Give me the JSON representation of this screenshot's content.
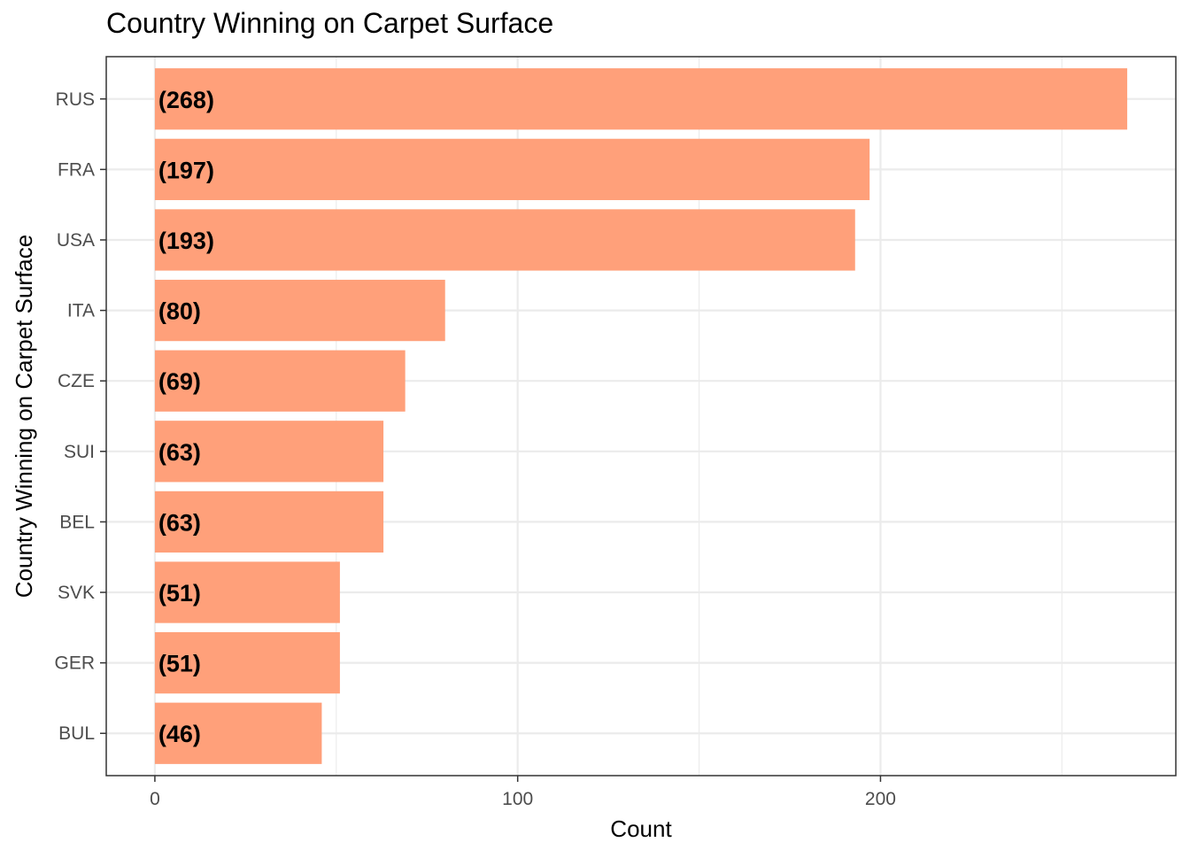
{
  "chart_data": {
    "type": "bar",
    "orientation": "horizontal",
    "title": "Country Winning on Carpet Surface",
    "xlabel": "Count",
    "ylabel": "Country Winning on Carpet Surface",
    "categories": [
      "RUS",
      "FRA",
      "USA",
      "ITA",
      "CZE",
      "SUI",
      "BEL",
      "SVK",
      "GER",
      "BUL"
    ],
    "values": [
      268,
      197,
      193,
      80,
      69,
      63,
      63,
      51,
      51,
      46
    ],
    "data_labels": [
      "(268)",
      "(197)",
      "(193)",
      "(80)",
      "(69)",
      "(63)",
      "(63)",
      "(51)",
      "(51)",
      "(46)"
    ],
    "x_ticks": [
      0,
      100,
      200
    ],
    "x_tick_labels": [
      "0",
      "100",
      "200"
    ],
    "xlim": [
      -13.4,
      281.4
    ],
    "grid": true,
    "legend": "none",
    "colors": {
      "bar": "#FFA07A",
      "grid": "#EBEBEB",
      "panel_border": "#333333"
    }
  }
}
